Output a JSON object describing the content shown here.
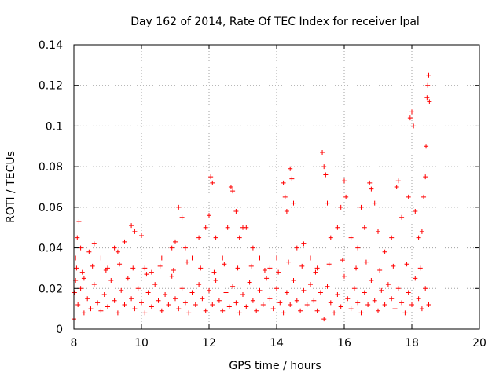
{
  "chart_data": {
    "type": "scatter",
    "title": "Day 162 of 2014, Rate Of TEC Index for receiver lpal",
    "xlabel": "GPS time / hours",
    "ylabel": "ROTI / TECUs",
    "xlim": [
      8,
      20
    ],
    "ylim": [
      0,
      0.14
    ],
    "xticks": [
      "8",
      "10",
      "12",
      "14",
      "16",
      "18",
      "20"
    ],
    "yticks": [
      "0",
      "0.02",
      "0.04",
      "0.06",
      "0.08",
      "0.1",
      "0.12",
      "0.14"
    ],
    "grid": true,
    "marker": "+",
    "color": "#ff0000",
    "series": [
      {
        "name": "ROTI",
        "points": [
          [
            8.05,
            0.035
          ],
          [
            8.1,
            0.045
          ],
          [
            8.15,
            0.053
          ],
          [
            8.2,
            0.04
          ],
          [
            8.3,
            0.025
          ],
          [
            8.45,
            0.038
          ],
          [
            8.6,
            0.042
          ],
          [
            8.8,
            0.035
          ],
          [
            9.0,
            0.03
          ],
          [
            9.2,
            0.04
          ],
          [
            9.3,
            0.038
          ],
          [
            9.5,
            0.043
          ],
          [
            9.7,
            0.051
          ],
          [
            9.8,
            0.048
          ],
          [
            10.0,
            0.046
          ],
          [
            10.1,
            0.03
          ],
          [
            10.3,
            0.028
          ],
          [
            10.6,
            0.035
          ],
          [
            10.9,
            0.04
          ],
          [
            11.0,
            0.043
          ],
          [
            11.1,
            0.06
          ],
          [
            11.2,
            0.055
          ],
          [
            11.3,
            0.04
          ],
          [
            11.5,
            0.035
          ],
          [
            11.7,
            0.045
          ],
          [
            11.9,
            0.05
          ],
          [
            12.0,
            0.056
          ],
          [
            12.05,
            0.075
          ],
          [
            12.1,
            0.072
          ],
          [
            12.2,
            0.045
          ],
          [
            12.4,
            0.035
          ],
          [
            12.55,
            0.05
          ],
          [
            12.65,
            0.07
          ],
          [
            12.7,
            0.068
          ],
          [
            12.8,
            0.058
          ],
          [
            12.9,
            0.045
          ],
          [
            13.0,
            0.05
          ],
          [
            13.1,
            0.05
          ],
          [
            13.3,
            0.04
          ],
          [
            13.5,
            0.035
          ],
          [
            13.8,
            0.03
          ],
          [
            14.0,
            0.035
          ],
          [
            14.2,
            0.072
          ],
          [
            14.25,
            0.065
          ],
          [
            14.3,
            0.058
          ],
          [
            14.4,
            0.079
          ],
          [
            14.45,
            0.074
          ],
          [
            14.5,
            0.062
          ],
          [
            14.6,
            0.04
          ],
          [
            14.8,
            0.042
          ],
          [
            15.0,
            0.035
          ],
          [
            15.2,
            0.03
          ],
          [
            15.35,
            0.087
          ],
          [
            15.4,
            0.08
          ],
          [
            15.45,
            0.076
          ],
          [
            15.5,
            0.062
          ],
          [
            15.6,
            0.045
          ],
          [
            15.8,
            0.05
          ],
          [
            15.9,
            0.06
          ],
          [
            16.0,
            0.073
          ],
          [
            16.05,
            0.065
          ],
          [
            16.2,
            0.045
          ],
          [
            16.4,
            0.04
          ],
          [
            16.5,
            0.06
          ],
          [
            16.6,
            0.05
          ],
          [
            16.75,
            0.072
          ],
          [
            16.8,
            0.069
          ],
          [
            16.9,
            0.062
          ],
          [
            17.0,
            0.048
          ],
          [
            17.2,
            0.038
          ],
          [
            17.4,
            0.045
          ],
          [
            17.55,
            0.07
          ],
          [
            17.6,
            0.073
          ],
          [
            17.7,
            0.055
          ],
          [
            17.9,
            0.065
          ],
          [
            17.95,
            0.104
          ],
          [
            18.0,
            0.107
          ],
          [
            18.05,
            0.1
          ],
          [
            18.1,
            0.058
          ],
          [
            18.2,
            0.045
          ],
          [
            18.3,
            0.048
          ],
          [
            18.35,
            0.065
          ],
          [
            18.4,
            0.075
          ],
          [
            18.42,
            0.09
          ],
          [
            18.45,
            0.114
          ],
          [
            18.47,
            0.12
          ],
          [
            18.5,
            0.125
          ],
          [
            18.52,
            0.112
          ],
          [
            8.0,
            0.005
          ],
          [
            8.02,
            0.018
          ],
          [
            8.05,
            0.024
          ],
          [
            8.12,
            0.012
          ],
          [
            8.2,
            0.02
          ],
          [
            8.3,
            0.008
          ],
          [
            8.4,
            0.015
          ],
          [
            8.5,
            0.01
          ],
          [
            8.6,
            0.022
          ],
          [
            8.7,
            0.013
          ],
          [
            8.8,
            0.009
          ],
          [
            8.9,
            0.017
          ],
          [
            9.0,
            0.011
          ],
          [
            9.1,
            0.024
          ],
          [
            9.2,
            0.014
          ],
          [
            9.3,
            0.008
          ],
          [
            9.4,
            0.019
          ],
          [
            9.5,
            0.012
          ],
          [
            9.6,
            0.025
          ],
          [
            9.7,
            0.015
          ],
          [
            9.8,
            0.01
          ],
          [
            9.9,
            0.02
          ],
          [
            10.0,
            0.013
          ],
          [
            10.1,
            0.008
          ],
          [
            10.2,
            0.018
          ],
          [
            10.3,
            0.011
          ],
          [
            10.4,
            0.022
          ],
          [
            10.5,
            0.014
          ],
          [
            10.6,
            0.009
          ],
          [
            10.7,
            0.017
          ],
          [
            10.8,
            0.012
          ],
          [
            10.9,
            0.026
          ],
          [
            11.0,
            0.015
          ],
          [
            11.1,
            0.01
          ],
          [
            11.2,
            0.02
          ],
          [
            11.3,
            0.013
          ],
          [
            11.4,
            0.008
          ],
          [
            11.5,
            0.018
          ],
          [
            11.6,
            0.012
          ],
          [
            11.7,
            0.022
          ],
          [
            11.8,
            0.015
          ],
          [
            11.9,
            0.009
          ],
          [
            12.0,
            0.019
          ],
          [
            12.1,
            0.012
          ],
          [
            12.2,
            0.024
          ],
          [
            12.3,
            0.014
          ],
          [
            12.4,
            0.009
          ],
          [
            12.5,
            0.018
          ],
          [
            12.6,
            0.011
          ],
          [
            12.7,
            0.021
          ],
          [
            12.8,
            0.013
          ],
          [
            12.9,
            0.008
          ],
          [
            13.0,
            0.017
          ],
          [
            13.1,
            0.011
          ],
          [
            13.2,
            0.023
          ],
          [
            13.3,
            0.014
          ],
          [
            13.4,
            0.009
          ],
          [
            13.5,
            0.019
          ],
          [
            13.6,
            0.012
          ],
          [
            13.7,
            0.025
          ],
          [
            13.8,
            0.015
          ],
          [
            13.9,
            0.01
          ],
          [
            14.0,
            0.02
          ],
          [
            14.1,
            0.013
          ],
          [
            14.2,
            0.008
          ],
          [
            14.3,
            0.018
          ],
          [
            14.4,
            0.012
          ],
          [
            14.5,
            0.024
          ],
          [
            14.6,
            0.014
          ],
          [
            14.7,
            0.009
          ],
          [
            14.8,
            0.019
          ],
          [
            14.9,
            0.012
          ],
          [
            15.0,
            0.022
          ],
          [
            15.1,
            0.014
          ],
          [
            15.2,
            0.009
          ],
          [
            15.3,
            0.018
          ],
          [
            15.4,
            0.005
          ],
          [
            15.5,
            0.021
          ],
          [
            15.6,
            0.013
          ],
          [
            15.7,
            0.008
          ],
          [
            15.8,
            0.017
          ],
          [
            15.9,
            0.011
          ],
          [
            16.0,
            0.026
          ],
          [
            16.1,
            0.015
          ],
          [
            16.2,
            0.01
          ],
          [
            16.3,
            0.02
          ],
          [
            16.4,
            0.013
          ],
          [
            16.5,
            0.008
          ],
          [
            16.6,
            0.018
          ],
          [
            16.7,
            0.012
          ],
          [
            16.8,
            0.024
          ],
          [
            16.9,
            0.014
          ],
          [
            17.0,
            0.009
          ],
          [
            17.1,
            0.019
          ],
          [
            17.2,
            0.012
          ],
          [
            17.3,
            0.022
          ],
          [
            17.4,
            0.015
          ],
          [
            17.5,
            0.01
          ],
          [
            17.6,
            0.02
          ],
          [
            17.7,
            0.013
          ],
          [
            17.8,
            0.008
          ],
          [
            17.9,
            0.018
          ],
          [
            18.0,
            0.012
          ],
          [
            18.1,
            0.025
          ],
          [
            18.2,
            0.015
          ],
          [
            18.3,
            0.01
          ],
          [
            18.4,
            0.02
          ],
          [
            18.5,
            0.012
          ],
          [
            8.08,
            0.03
          ],
          [
            8.25,
            0.028
          ],
          [
            8.55,
            0.031
          ],
          [
            8.95,
            0.029
          ],
          [
            9.35,
            0.032
          ],
          [
            9.75,
            0.03
          ],
          [
            10.15,
            0.027
          ],
          [
            10.55,
            0.031
          ],
          [
            10.95,
            0.029
          ],
          [
            11.35,
            0.033
          ],
          [
            11.75,
            0.03
          ],
          [
            12.15,
            0.028
          ],
          [
            12.45,
            0.032
          ],
          [
            12.85,
            0.03
          ],
          [
            13.25,
            0.031
          ],
          [
            13.65,
            0.029
          ],
          [
            14.05,
            0.028
          ],
          [
            14.35,
            0.033
          ],
          [
            14.75,
            0.031
          ],
          [
            15.15,
            0.028
          ],
          [
            15.55,
            0.032
          ],
          [
            15.95,
            0.034
          ],
          [
            16.35,
            0.03
          ],
          [
            16.65,
            0.033
          ],
          [
            17.05,
            0.029
          ],
          [
            17.45,
            0.031
          ],
          [
            17.85,
            0.032
          ],
          [
            18.25,
            0.03
          ]
        ]
      }
    ]
  }
}
